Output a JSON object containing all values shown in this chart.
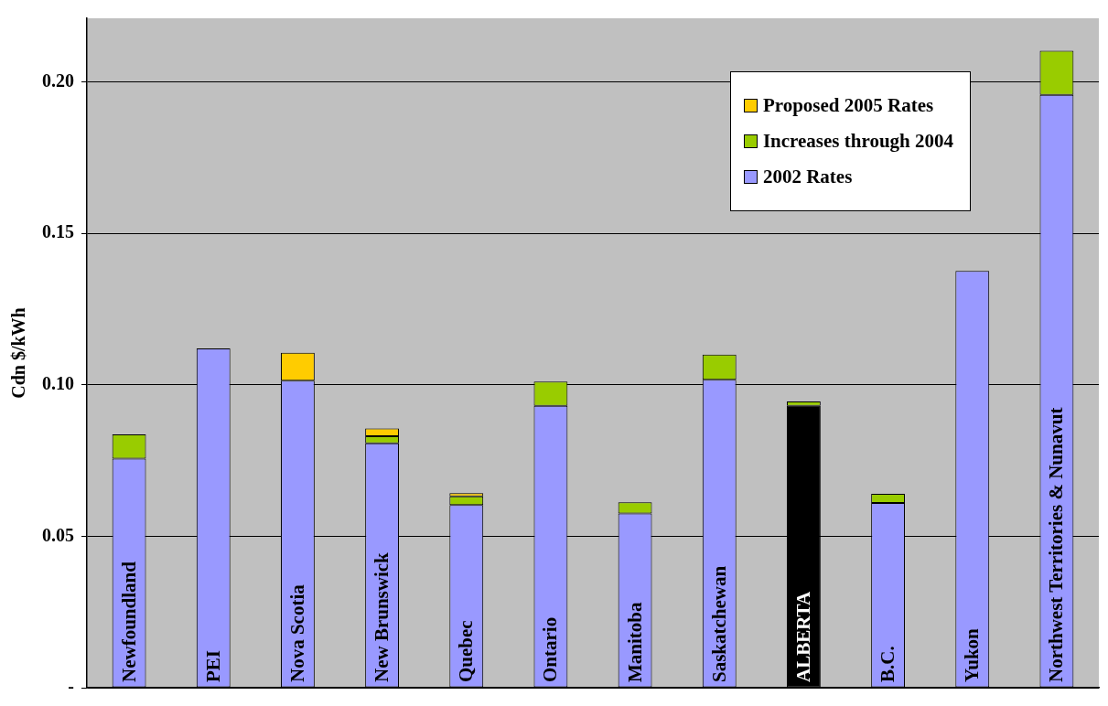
{
  "chart_data": {
    "type": "bar",
    "stacked": true,
    "ylabel": "Cdn $/kWh",
    "categories": [
      "Newfoundland",
      "PEI",
      "Nova Scotia",
      "New Brunswick",
      "Quebec",
      "Ontario",
      "Manitoba",
      "Saskatchewan",
      "ALBERTA",
      "B.C.",
      "Yukon",
      "Northwest Territories & Nunavut"
    ],
    "series": [
      {
        "name": "2002 Rates",
        "color": "#9999ff",
        "colors": [
          "#9999ff",
          "#9999ff",
          "#9999ff",
          "#9999ff",
          "#9999ff",
          "#9999ff",
          "#9999ff",
          "#9999ff",
          "#000000",
          "#9999ff",
          "#9999ff",
          "#9999ff"
        ],
        "values": [
          0.0756,
          0.112,
          0.1014,
          0.0807,
          0.0603,
          0.0931,
          0.0575,
          0.1017,
          0.0931,
          0.061,
          0.1376,
          0.1957
        ]
      },
      {
        "name": "Increases through 2004",
        "color": "#99cc00",
        "values": [
          0.008,
          null,
          null,
          0.0023,
          0.0029,
          0.008,
          0.0037,
          0.0083,
          0.0014,
          0.003,
          null,
          0.0146
        ]
      },
      {
        "name": "Proposed 2005 Rates",
        "color": "#ffcc00",
        "values": [
          null,
          null,
          0.0092,
          0.0026,
          0.001,
          null,
          null,
          null,
          null,
          null,
          null,
          null
        ]
      }
    ],
    "ylim": [
      0,
      0.221
    ],
    "yticks": [
      {
        "value": 0,
        "label": "-"
      },
      0.05,
      {
        "value": 0.1,
        "label": "0.10"
      },
      0.15,
      {
        "value": 0.2,
        "label": "0.20"
      }
    ],
    "grid": "y",
    "legend": "top right"
  }
}
